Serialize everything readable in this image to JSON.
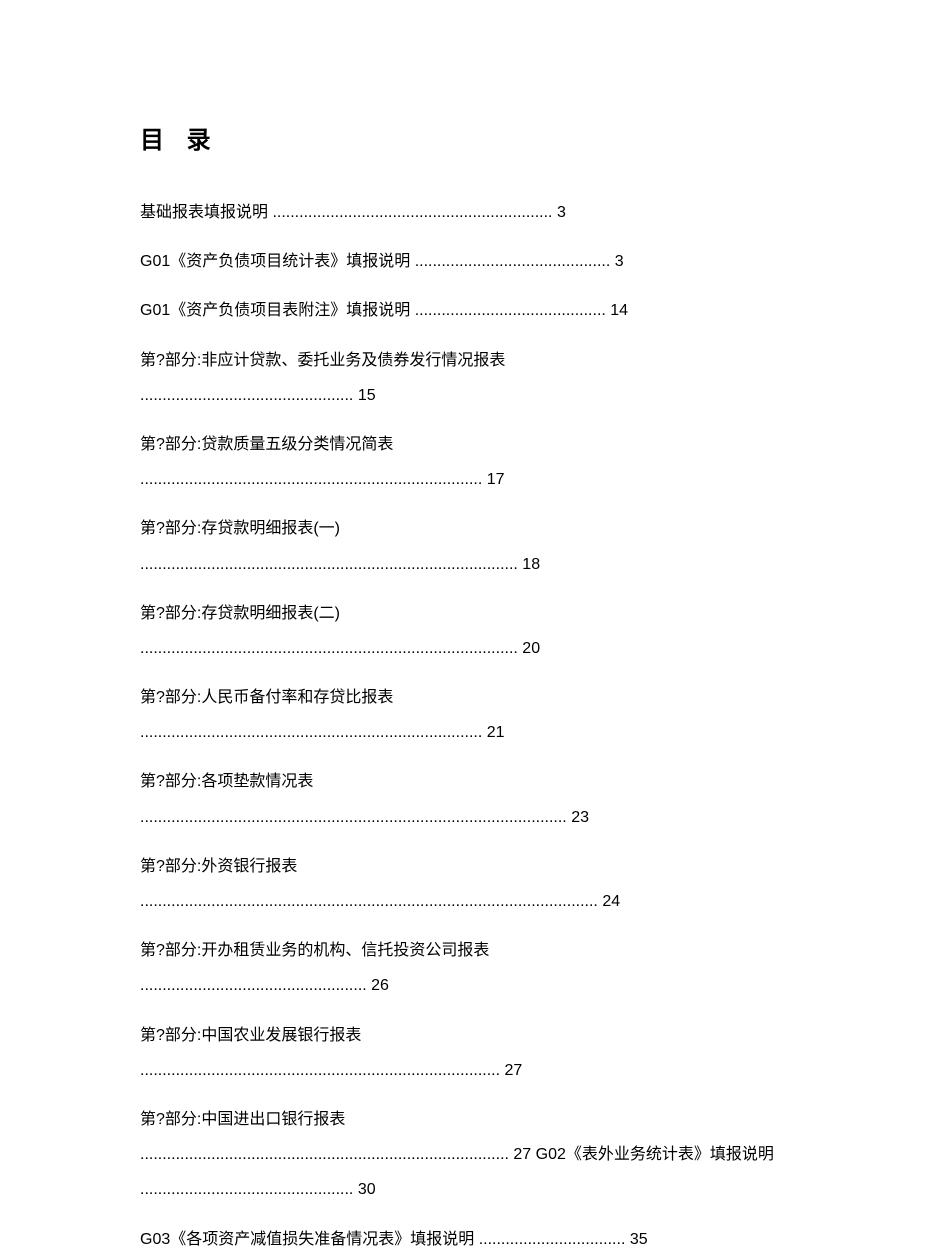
{
  "title": "目 录",
  "entries": [
    {
      "lines": [
        "基础报表填报说明 ............................................................... 3"
      ]
    },
    {
      "lines": [
        "G01《资产负债项目统计表》填报说明 ............................................ 3"
      ]
    },
    {
      "lines": [
        "G01《资产负债项目表附注》填报说明 ........................................... 14"
      ]
    },
    {
      "lines": [
        "第?部分:非应计贷款、委托业务及债券发行情况报表",
        "................................................ 15"
      ]
    },
    {
      "lines": [
        "第?部分:贷款质量五级分类情况简表",
        "............................................................................. 17"
      ]
    },
    {
      "lines": [
        "第?部分:存贷款明细报表(一)",
        " ..................................................................................... 18"
      ]
    },
    {
      "lines": [
        "第?部分:存贷款明细报表(二)",
        " ..................................................................................... 20"
      ]
    },
    {
      "lines": [
        "第?部分:人民币备付率和存贷比报表",
        "............................................................................. 21"
      ]
    },
    {
      "lines": [
        "第?部分:各项垫款情况表",
        "................................................................................................ 23"
      ]
    },
    {
      "lines": [
        "第?部分:外资银行报表",
        "....................................................................................................... 24"
      ]
    },
    {
      "lines": [
        "第?部分:开办租赁业务的机构、信托投资公司报表",
        "................................................... 26"
      ]
    },
    {
      "lines": [
        "第?部分:中国农业发展银行报表",
        "................................................................................. 27"
      ]
    },
    {
      "lines": [
        "第?部分:中国进出口银行报表",
        "................................................................................... 27 G02《表外业务统计表》填报说明 ................................................ 30"
      ]
    },
    {
      "lines": [
        "G03《各项资产减值损失准备情况表》填报说明 ................................. 35"
      ]
    }
  ],
  "styles": {
    "background_color": "#ffffff",
    "text_color": "#000000",
    "title_fontsize": 24,
    "body_fontsize": 16,
    "line_height": 2.2
  }
}
